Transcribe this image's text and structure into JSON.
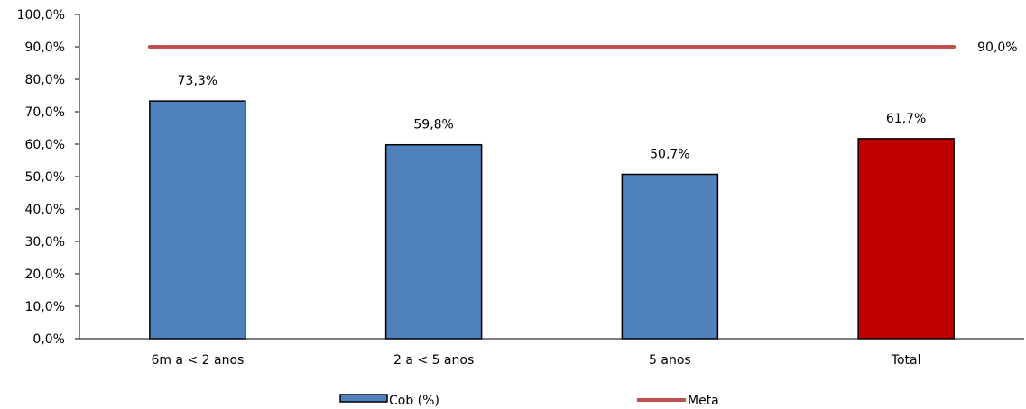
{
  "chart_data": {
    "type": "bar",
    "categories": [
      "6m a < 2 anos",
      "2 a < 5 anos",
      "5 anos",
      "Total"
    ],
    "series": [
      {
        "name": "Cob (%)",
        "values": [
          73.3,
          59.8,
          50.7,
          61.7
        ],
        "value_labels": [
          "73,3%",
          "59,8%",
          "50,7%",
          "61,7%"
        ],
        "bar_colors": [
          "#4f81bd",
          "#4f81bd",
          "#4f81bd",
          "#c00000"
        ],
        "type": "bar"
      },
      {
        "name": "Meta",
        "value": 90.0,
        "value_label": "90,0%",
        "color": "#c0504d",
        "type": "line"
      }
    ],
    "ylim": [
      0,
      100
    ],
    "y_ticks": [
      0,
      10,
      20,
      30,
      40,
      50,
      60,
      70,
      80,
      90,
      100
    ],
    "y_tick_labels": [
      "0,0%",
      "10,0%",
      "20,0%",
      "30,0%",
      "40,0%",
      "50,0%",
      "60,0%",
      "70,0%",
      "80,0%",
      "90,0%",
      "100,0%"
    ],
    "grid": false,
    "legend": {
      "position": "bottom",
      "entries": [
        "Cob (%)",
        "Meta"
      ]
    }
  }
}
